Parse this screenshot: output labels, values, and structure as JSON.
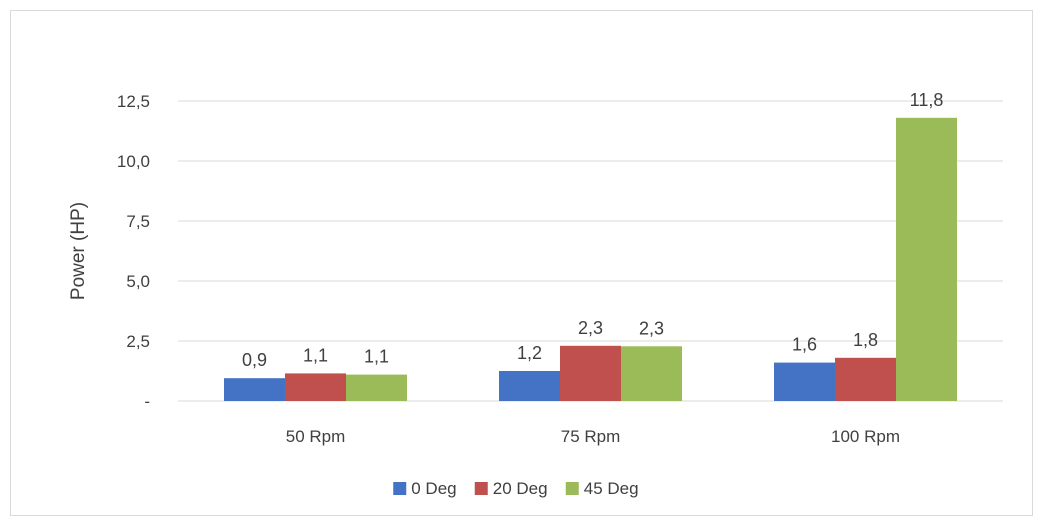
{
  "chart_data": {
    "type": "bar",
    "title": "",
    "xlabel": "",
    "ylabel": "Power (HP)",
    "ylim": [
      0,
      12.5
    ],
    "yticks": [
      0,
      2.5,
      5.0,
      7.5,
      10.0,
      12.5
    ],
    "ytick_labels": [
      "-",
      "2,5",
      "5,0",
      "7,5",
      "10,0",
      "12,5"
    ],
    "grid": true,
    "legend_position": "bottom",
    "categories": [
      "50 Rpm",
      "75 Rpm",
      "100 Rpm"
    ],
    "series": [
      {
        "name": "0 Deg",
        "color": "#4472c4",
        "values": [
          0.95,
          1.25,
          1.6
        ],
        "labels": [
          "0,9",
          "1,2",
          "1,6"
        ]
      },
      {
        "name": "20 Deg",
        "color": "#c0504d",
        "values": [
          1.15,
          2.3,
          1.8
        ],
        "labels": [
          "1,1",
          "2,3",
          "1,8"
        ]
      },
      {
        "name": "45 Deg",
        "color": "#9bbb59",
        "values": [
          1.1,
          2.28,
          11.8
        ],
        "labels": [
          "1,1",
          "2,3",
          "11,8"
        ]
      }
    ]
  }
}
